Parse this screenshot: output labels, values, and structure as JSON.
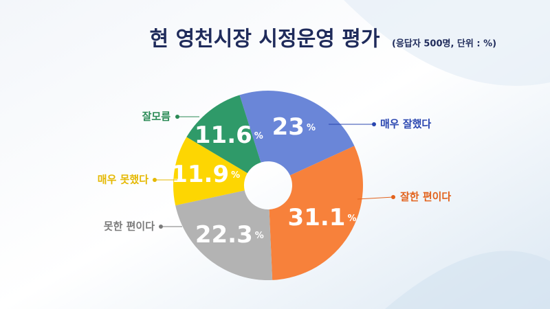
{
  "chart_data": {
    "type": "donut",
    "title": "현 영천시장 시정운영 평가",
    "subtitle": "(응답자 500명, 단위 : %)",
    "categories": [
      "매우 잘했다",
      "잘한 편이다",
      "못한 편이다",
      "매우 못했다",
      "잘모름"
    ],
    "values": [
      23,
      31.1,
      22.3,
      11.9,
      11.6
    ],
    "unit": "%",
    "colors": [
      "#6a86d8",
      "#f7813b",
      "#b3b3b3",
      "#fdd602",
      "#2f9a69"
    ]
  }
}
